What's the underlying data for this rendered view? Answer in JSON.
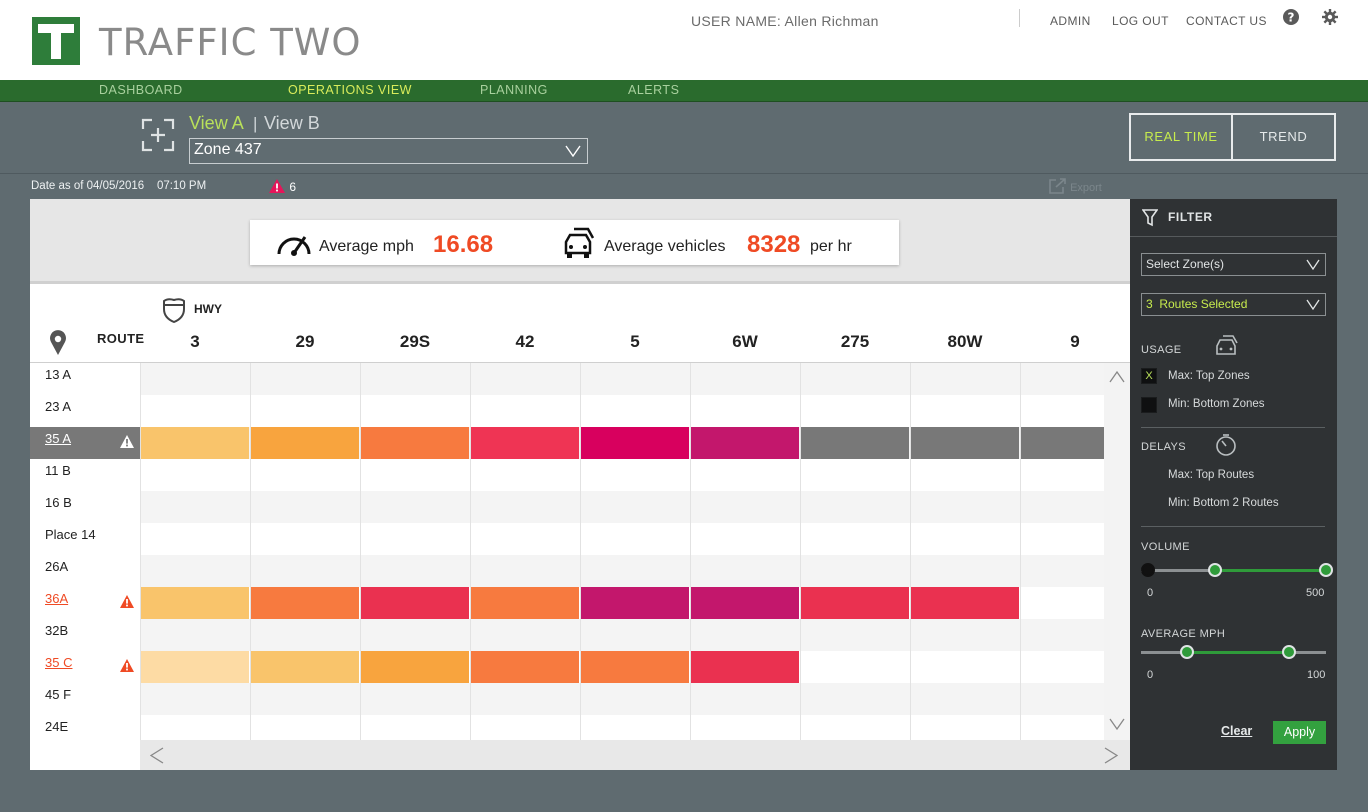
{
  "header": {
    "brand": "TRAFFIC TWO",
    "user_name": "USER NAME: Allen Richman",
    "links": [
      "ADMIN",
      "LOG OUT",
      "CONTACT US"
    ]
  },
  "nav": {
    "items": [
      "DASHBOARD",
      "OPERATIONS VIEW",
      "PLANNING",
      "ALERTS"
    ],
    "active": "OPERATIONS VIEW"
  },
  "toolbar": {
    "view_a": "View A",
    "separator": "|",
    "view_b": "View B",
    "zone": "Zone 437",
    "modes": [
      "REAL TIME",
      "TREND"
    ],
    "active_mode": "REAL TIME"
  },
  "status": {
    "date": "Date as of 04/05/2016    07:10 PM",
    "alert_count": "6",
    "export_label": "Export"
  },
  "stats": {
    "avg_mph_label": "Average mph",
    "avg_mph_value": "16.68",
    "avg_vehicles_label": "Average vehicles",
    "avg_vehicles_value": "8328",
    "avg_vehicles_unit": "per hr"
  },
  "grid": {
    "hwy_label": "HWY",
    "route_label": "ROUTE",
    "columns": [
      "3",
      "29",
      "29S",
      "42",
      "5",
      "6W",
      "275",
      "80W",
      "9"
    ],
    "rows": [
      {
        "name": "13 A",
        "state": "normal",
        "cells": []
      },
      {
        "name": "23 A",
        "state": "normal",
        "cells": []
      },
      {
        "name": "35 A",
        "state": "highlight",
        "cells": [
          "#f9c46b",
          "#f8a43e",
          "#f77a3f",
          "#ef3454",
          "#d8005e",
          "#c3176c",
          "#787878",
          "#787878",
          "#787878"
        ]
      },
      {
        "name": "11 B",
        "state": "normal",
        "cells": []
      },
      {
        "name": "16 B",
        "state": "normal",
        "cells": []
      },
      {
        "name": "Place 14",
        "state": "normal",
        "cells": []
      },
      {
        "name": "26A",
        "state": "normal",
        "cells": []
      },
      {
        "name": "36A",
        "state": "alert",
        "cells": [
          "#f9c46b",
          "#f77a3f",
          "#ea3150",
          "#f77a3f",
          "#c3176c",
          "#c3176c",
          "#ea3150",
          "#ea3150"
        ]
      },
      {
        "name": "32B",
        "state": "normal",
        "cells": []
      },
      {
        "name": "35 C",
        "state": "alert",
        "cells": [
          "#fddba4",
          "#f9c46b",
          "#f8a43e",
          "#f77a3f",
          "#f77a3f",
          "#ea3150"
        ]
      },
      {
        "name": "45 F",
        "state": "normal",
        "cells": []
      },
      {
        "name": "24E",
        "state": "normal",
        "cells": []
      }
    ]
  },
  "filter": {
    "title": "FILTER",
    "zone_select": "Select Zone(s)",
    "routes_select": "3  Routes Selected",
    "usage_label": "USAGE",
    "usage_options": [
      {
        "label": "Max: Top Zones",
        "checked": true,
        "mark": "X"
      },
      {
        "label": "Min: Bottom Zones",
        "checked": false,
        "mark": ""
      }
    ],
    "delays_label": "DELAYS",
    "delays_options": [
      "Max: Top Routes",
      "Min: Bottom 2 Routes"
    ],
    "volume_label": "VOLUME",
    "volume_min": "0",
    "volume_max": "500",
    "volume_range": [
      0.4,
      1.0
    ],
    "mph_label": "AVERAGE MPH",
    "mph_min": "0",
    "mph_max": "100",
    "mph_range": [
      0.25,
      0.8
    ],
    "clear_label": "Clear",
    "apply_label": "Apply"
  },
  "colors": {
    "brand_green": "#2e7d3a",
    "nav_active": "#d9ec5b",
    "stat_value": "#ef4a24",
    "alert": "#ef4a24"
  }
}
